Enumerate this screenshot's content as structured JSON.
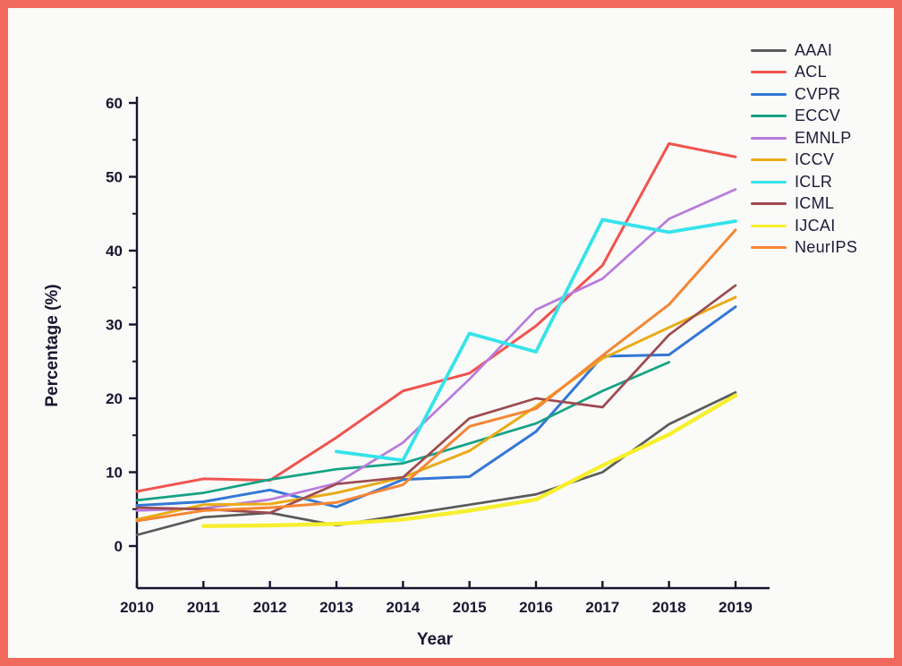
{
  "frame": {
    "border_color": "#f1695c",
    "background": "#fafaf8"
  },
  "chart_data": {
    "type": "line",
    "title": "",
    "xlabel": "Year",
    "ylabel": "Percentage (%)",
    "x": [
      2010,
      2011,
      2012,
      2013,
      2014,
      2015,
      2016,
      2017,
      2018,
      2019
    ],
    "ylim": [
      0,
      60
    ],
    "ytick_step": 10,
    "yminor_step": 5,
    "grid": false,
    "legend_position": "top-right",
    "series": [
      {
        "name": "AAAI",
        "color": "#5a5a5a",
        "values": [
          1.5,
          3.9,
          4.5,
          2.8,
          4.2,
          5.6,
          7.0,
          10.0,
          16.5,
          20.8
        ]
      },
      {
        "name": "ACL",
        "color": "#f0534e",
        "values": [
          7.4,
          9.1,
          8.9,
          14.7,
          21.0,
          23.4,
          29.8,
          38.0,
          54.5,
          52.7
        ]
      },
      {
        "name": "CVPR",
        "color": "#3377d6",
        "values": [
          5.5,
          6.0,
          7.6,
          5.3,
          9.0,
          9.4,
          15.5,
          25.7,
          25.9,
          32.4
        ]
      },
      {
        "name": "ECCV",
        "color": "#14a284",
        "values": [
          6.2,
          7.2,
          9.0,
          10.4,
          11.2,
          13.9,
          16.6,
          21.0,
          24.9,
          null
        ]
      },
      {
        "name": "EMNLP",
        "color": "#b77bdd",
        "values": [
          4.8,
          5.1,
          6.3,
          8.5,
          14.0,
          22.6,
          32.0,
          36.2,
          44.3,
          48.3
        ]
      },
      {
        "name": "ICCV",
        "color": "#eaab17",
        "values": [
          3.6,
          5.6,
          5.7,
          7.2,
          9.3,
          12.9,
          18.9,
          25.4,
          29.6,
          33.7
        ]
      },
      {
        "name": "ICLR",
        "color": "#35e3ea",
        "values": [
          null,
          null,
          null,
          12.8,
          11.6,
          28.8,
          26.3,
          44.2,
          42.5,
          44.0
        ]
      },
      {
        "name": "ICML",
        "color": "#9c4a50",
        "values": [
          5.2,
          5.0,
          4.5,
          8.4,
          9.3,
          17.3,
          20.0,
          18.8,
          28.6,
          35.3
        ]
      },
      {
        "name": "IJCAI",
        "color": "#f6ef2d",
        "values": [
          null,
          2.7,
          2.8,
          3.0,
          3.6,
          4.8,
          6.3,
          10.9,
          15.1,
          20.4
        ]
      },
      {
        "name": "NeurIPS",
        "color": "#f58634",
        "values": [
          3.4,
          4.8,
          5.2,
          5.9,
          8.3,
          16.2,
          18.6,
          25.8,
          32.7,
          42.8
        ]
      }
    ]
  }
}
